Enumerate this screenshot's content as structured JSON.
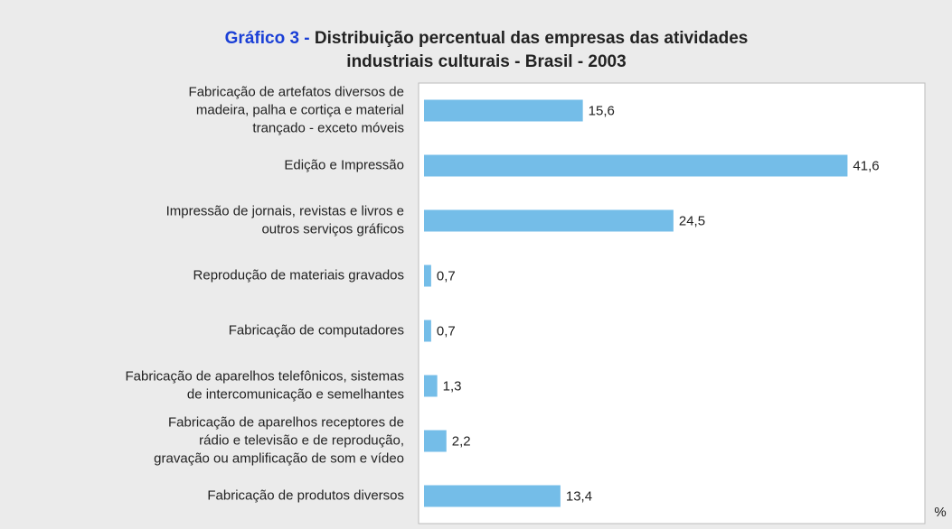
{
  "chart_data": {
    "type": "barh",
    "title_prefix": "Gráfico 3 -",
    "title": [
      "Distribuição percentual das empresas das atividades",
      "industriais culturais - Brasil - 2003"
    ],
    "categories": [
      [
        "Fabricação de artefatos diversos de",
        "madeira, palha e cortiça e material",
        "trançado - exceto móveis"
      ],
      [
        "Edição e Impressão"
      ],
      [
        "Impressão de jornais, revistas e livros e",
        "outros serviços gráficos"
      ],
      [
        "Reprodução de materiais gravados"
      ],
      [
        "Fabricação de computadores"
      ],
      [
        "Fabricação de aparelhos telefônicos, sistemas",
        "de intercomunicação e semelhantes"
      ],
      [
        "Fabricação de aparelhos receptores de",
        "rádio e televisão e de reprodução,",
        "gravação ou amplificação de som e vídeo"
      ],
      [
        "Fabricação de produtos diversos"
      ]
    ],
    "values": [
      15.6,
      41.6,
      24.5,
      0.7,
      0.7,
      1.3,
      2.2,
      13.4
    ],
    "value_labels": [
      "15,6",
      "41,6",
      "24,5",
      "0,7",
      "0,7",
      "1,3",
      "2,2",
      "13,4"
    ],
    "x_label": "%",
    "color": "#74bde8",
    "xlim": [
      0,
      49.2
    ]
  }
}
